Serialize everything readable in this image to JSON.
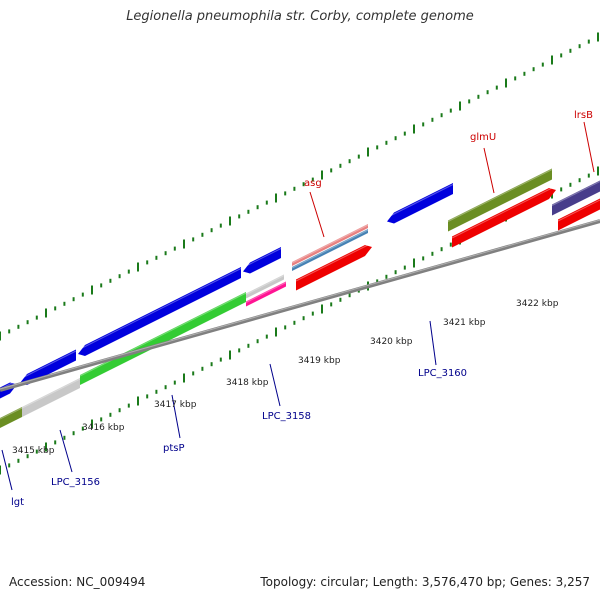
{
  "title": "Legionella pneumophila str. Corby, complete genome",
  "footer": {
    "accession": "Accession: NC_009494",
    "topology": "Topology: circular; Length: 3,576,470 bp; Genes: 3,257"
  },
  "ticks": [
    "3415 kbp",
    "3416 kbp",
    "3417 kbp",
    "3418 kbp",
    "3419 kbp",
    "3420 kbp",
    "3421 kbp",
    "3422 kbp"
  ],
  "genes": [
    {
      "label": "lgt",
      "color": "#00008b"
    },
    {
      "label": "LPC_3156",
      "color": "#00008b"
    },
    {
      "label": "ptsP",
      "color": "#00008b"
    },
    {
      "label": "LPC_3158",
      "color": "#00008b"
    },
    {
      "label": "LPC_3160",
      "color": "#00008b"
    },
    {
      "label": "asg",
      "color": "#cc0000"
    },
    {
      "label": "glmU",
      "color": "#cc0000"
    },
    {
      "label": "lrsB",
      "color": "#cc0000"
    }
  ],
  "colors": {
    "backbone": "#808080",
    "tick_marks": "#1a7a1a",
    "cds_forward": "#ee0000",
    "cds_reverse": "#0000dd",
    "gene_olive": "#6b8e23",
    "gene_green": "#33cc33",
    "gene_grey": "#c8c8c8",
    "gene_pink": "#ff1493",
    "gene_slate": "#483d8b",
    "gene_rose": "#e88080",
    "gene_steel": "#4682b4"
  }
}
